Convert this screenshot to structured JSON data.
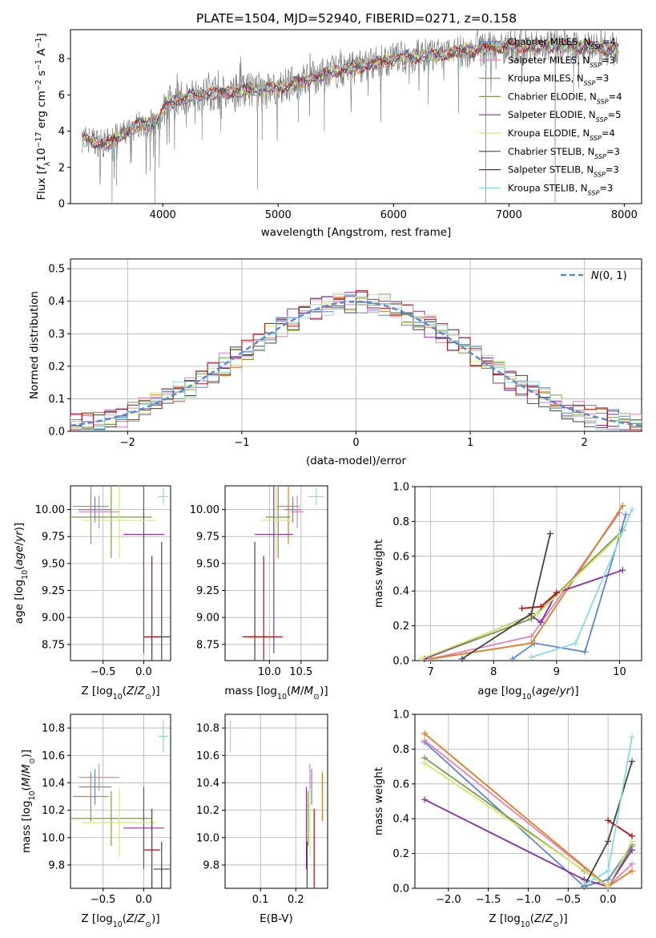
{
  "title": "PLATE=1504, MJD=52940, FIBERID=0271, z=0.158",
  "colors": {
    "data": "#808080",
    "chabrier_miles": "#5b86d6",
    "salpeter_miles": "#e97fb6",
    "kroupa_miles": "#e07b1e",
    "chabrier_elodie": "#7a9b54",
    "salpeter_elodie": "#8a2ea8",
    "kroupa_elodie": "#d6e86a",
    "chabrier_stelib": "#444444",
    "salpeter_stelib": "#b50f0f",
    "kroupa_stelib": "#86dbe3",
    "normal_curve": "#5b8ad6"
  },
  "chart_data": [
    {
      "id": "spectrum",
      "type": "line",
      "title": "PLATE=1504, MJD=52940, FIBERID=0271, z=0.158",
      "xlabel": "wavelength [Angstrom, rest frame]",
      "ylabel_parts": [
        "Flux [",
        "f",
        "λ",
        "10",
        "−17",
        " erg cm",
        "−2",
        " s",
        "−1",
        " A",
        "−1",
        "]"
      ],
      "xlim": [
        3200,
        8150
      ],
      "ylim": [
        0,
        9.6
      ],
      "xticks": [
        4000,
        5000,
        6000,
        7000,
        8000
      ],
      "yticks": [
        0,
        2,
        4,
        6,
        8
      ],
      "continuum": [
        [
          3300,
          3.6
        ],
        [
          3500,
          3.3
        ],
        [
          3650,
          3.8
        ],
        [
          3800,
          4.4
        ],
        [
          3950,
          4.5
        ],
        [
          4050,
          5.6
        ],
        [
          4300,
          6.0
        ],
        [
          4600,
          6.2
        ],
        [
          5000,
          6.4
        ],
        [
          5500,
          7.3
        ],
        [
          6000,
          8.0
        ],
        [
          6500,
          8.3
        ],
        [
          7000,
          8.7
        ],
        [
          7500,
          8.7
        ],
        [
          8000,
          8.5
        ]
      ],
      "absorption_lines": [
        [
          3560,
          0.0
        ],
        [
          3600,
          1.0
        ],
        [
          3720,
          2.2
        ],
        [
          3890,
          1.8
        ],
        [
          3934,
          0.0
        ],
        [
          3970,
          2.0
        ],
        [
          4102,
          3.0
        ],
        [
          4340,
          3.5
        ],
        [
          4500,
          4.0
        ],
        [
          4820,
          0.8
        ],
        [
          4861,
          3.5
        ],
        [
          5175,
          4.5
        ],
        [
          5400,
          4.0
        ],
        [
          5890,
          4.5
        ],
        [
          6300,
          5.5
        ],
        [
          6563,
          5.0
        ],
        [
          6800,
          0.0
        ],
        [
          7400,
          0.0
        ],
        [
          7560,
          6.2
        ]
      ],
      "legend": [
        {
          "name": "Chabrier MILES",
          "n": "4",
          "color": "#5b86d6"
        },
        {
          "name": "Salpeter MILES",
          "n": "3",
          "color": "#e97fb6"
        },
        {
          "name": "Kroupa MILES",
          "n": "3",
          "color": "#e07b1e"
        },
        {
          "name": "Chabrier ELODIE",
          "n": "4",
          "color": "#7a9b54"
        },
        {
          "name": "Salpeter ELODIE",
          "n": "5",
          "color": "#8a2ea8"
        },
        {
          "name": "Kroupa ELODIE",
          "n": "4",
          "color": "#d6e86a"
        },
        {
          "name": "Chabrier STELIB",
          "n": "3",
          "color": "#444444"
        },
        {
          "name": "Salpeter STELIB",
          "n": "3",
          "color": "#b50f0f"
        },
        {
          "name": "Kroupa STELIB",
          "n": "3",
          "color": "#86dbe3"
        }
      ],
      "legend_sub": "SSP",
      "legend_placement": "right"
    },
    {
      "id": "residuals",
      "type": "histogram",
      "xlabel": "(data-model)/error",
      "ylabel": "Normed distribution",
      "xlim": [
        -2.5,
        2.5
      ],
      "ylim": [
        0,
        0.53
      ],
      "xticks": [
        -2,
        -1,
        0,
        1,
        2
      ],
      "yticks": [
        0.0,
        0.1,
        0.2,
        0.3,
        0.4,
        0.5
      ],
      "bin_width": 0.1,
      "grid": true,
      "series_colors": [
        "#5b86d6",
        "#e97fb6",
        "#e07b1e",
        "#7a9b54",
        "#8a2ea8",
        "#d6e86a",
        "#444444",
        "#b50f0f",
        "#86dbe3"
      ],
      "legend": {
        "label_script": "N",
        "label_rest": "(0, 1)",
        "placement": "top-right"
      }
    },
    {
      "id": "age_vs_z",
      "type": "scatter",
      "xlabel": "Z [log10(Z/Z☉)]",
      "ylabel": "age  [log10(age/yr)]",
      "xlim": [
        -0.9,
        0.33
      ],
      "ylim": [
        8.6,
        10.22
      ],
      "xticks": [
        -0.5,
        0.0
      ],
      "xticklabels": [
        "−0.5",
        "0.0"
      ],
      "yticks": [
        8.75,
        9.0,
        9.25,
        9.5,
        9.75,
        10.0
      ],
      "points": [
        {
          "x": -0.6,
          "xerr": 0.2,
          "y": 10.0,
          "yerr": 0.12,
          "color": "#5b86d6"
        },
        {
          "x": -0.55,
          "xerr": 0.25,
          "y": 9.98,
          "yerr": 0.15,
          "color": "#e97fb6"
        },
        {
          "x": -0.65,
          "xerr": 0.22,
          "y": 10.03,
          "yerr": 0.35,
          "color": "#e07b1e"
        },
        {
          "x": -0.4,
          "xerr": 0.5,
          "y": 9.93,
          "yerr": 0.38,
          "color": "#7a9b54"
        },
        {
          "x": 0.0,
          "xerr": 0.25,
          "y": 9.77,
          "yerr": 1.1,
          "color": "#8a2ea8"
        },
        {
          "x": -0.3,
          "xerr": 0.45,
          "y": 9.9,
          "yerr": 0.35,
          "color": "#d6e86a"
        },
        {
          "x": 0.22,
          "xerr": 0.1,
          "y": 8.82,
          "yerr": 0.88,
          "color": "#444444"
        },
        {
          "x": 0.1,
          "xerr": 0.1,
          "y": 8.82,
          "yerr": 0.75,
          "color": "#b50f0f"
        },
        {
          "x": 0.24,
          "xerr": 0.06,
          "y": 10.12,
          "yerr": 0.08,
          "color": "#86dbe3"
        }
      ]
    },
    {
      "id": "age_vs_mass",
      "type": "scatter",
      "xlabel": "mass [log10(M/M☉)]",
      "ylabel": "",
      "xlim": [
        9.3,
        10.92
      ],
      "ylim": [
        8.6,
        10.22
      ],
      "xticks": [
        10.0,
        10.5
      ],
      "xticklabels": [
        "10.0",
        "10.5"
      ],
      "yticks": [
        8.75,
        9.0,
        9.25,
        9.5,
        9.75,
        10.0
      ],
      "points": [
        {
          "x": 10.37,
          "xerr": 0.13,
          "y": 10.0,
          "yerr": 0.12,
          "color": "#5b86d6"
        },
        {
          "x": 10.44,
          "xerr": 0.1,
          "y": 9.98,
          "yerr": 0.15,
          "color": "#e97fb6"
        },
        {
          "x": 10.3,
          "xerr": 0.18,
          "y": 10.03,
          "yerr": 0.35,
          "color": "#e07b1e"
        },
        {
          "x": 10.14,
          "xerr": 0.2,
          "y": 9.93,
          "yerr": 0.38,
          "color": "#7a9b54"
        },
        {
          "x": 10.07,
          "xerr": 0.3,
          "y": 9.77,
          "yerr": 1.1,
          "color": "#8a2ea8"
        },
        {
          "x": 10.11,
          "xerr": 0.25,
          "y": 9.9,
          "yerr": 0.35,
          "color": "#d6e86a"
        },
        {
          "x": 9.77,
          "xerr": 0.2,
          "y": 8.82,
          "yerr": 0.88,
          "color": "#444444"
        },
        {
          "x": 9.91,
          "xerr": 0.3,
          "y": 8.82,
          "yerr": 0.75,
          "color": "#b50f0f"
        },
        {
          "x": 10.74,
          "xerr": 0.12,
          "y": 10.12,
          "yerr": 0.08,
          "color": "#86dbe3"
        }
      ]
    },
    {
      "id": "mass_weight_vs_age",
      "type": "line",
      "xlabel": "age  [log10(age/yr)]",
      "ylabel": "mass weight",
      "xlim": [
        6.75,
        10.35
      ],
      "ylim": [
        0,
        1.0
      ],
      "xticks": [
        7,
        8,
        9,
        10
      ],
      "yticks": [
        0.0,
        0.2,
        0.4,
        0.6,
        0.8,
        1.0
      ],
      "series": [
        {
          "color": "#5b86d6",
          "points": [
            [
              8.3,
              0.01
            ],
            [
              8.65,
              0.1
            ],
            [
              9.45,
              0.05
            ],
            [
              10.1,
              0.84
            ]
          ]
        },
        {
          "color": "#e97fb6",
          "points": [
            [
              7.0,
              0.01
            ],
            [
              8.6,
              0.14
            ],
            [
              10.0,
              0.85
            ]
          ]
        },
        {
          "color": "#e07b1e",
          "points": [
            [
              7.0,
              0.01
            ],
            [
              8.6,
              0.1
            ],
            [
              10.05,
              0.89
            ]
          ]
        },
        {
          "color": "#7a9b54",
          "points": [
            [
              6.9,
              0.01
            ],
            [
              8.6,
              0.24
            ],
            [
              10.05,
              0.75
            ]
          ]
        },
        {
          "color": "#8a2ea8",
          "points": [
            [
              6.9,
              0.01
            ],
            [
              8.6,
              0.26
            ],
            [
              8.75,
              0.22
            ],
            [
              9.0,
              0.39
            ],
            [
              10.05,
              0.52
            ]
          ]
        },
        {
          "color": "#d6e86a",
          "points": [
            [
              6.85,
              0.01
            ],
            [
              8.7,
              0.27
            ],
            [
              10.0,
              0.72
            ]
          ]
        },
        {
          "color": "#444444",
          "points": [
            [
              7.5,
              0.01
            ],
            [
              8.6,
              0.27
            ],
            [
              8.9,
              0.73
            ]
          ]
        },
        {
          "color": "#b50f0f",
          "points": [
            [
              8.45,
              0.3
            ],
            [
              8.75,
              0.31
            ],
            [
              9.0,
              0.39
            ]
          ]
        },
        {
          "color": "#86dbe3",
          "points": [
            [
              8.6,
              0.02
            ],
            [
              9.3,
              0.1
            ],
            [
              10.2,
              0.87
            ]
          ]
        }
      ]
    },
    {
      "id": "mass_vs_z",
      "type": "scatter",
      "xlabel": "Z [log10(Z/Z☉)]",
      "ylabel": "mass [log10(M/M☉)]",
      "xlim": [
        -0.9,
        0.33
      ],
      "ylim": [
        9.63,
        10.9
      ],
      "xticks": [
        -0.5,
        0.0
      ],
      "xticklabels": [
        "−0.5",
        "0.0"
      ],
      "yticks": [
        9.8,
        10.0,
        10.2,
        10.4,
        10.6,
        10.8
      ],
      "points": [
        {
          "x": -0.6,
          "xerr": 0.2,
          "y": 10.37,
          "yerr": 0.13,
          "color": "#5b86d6"
        },
        {
          "x": -0.55,
          "xerr": 0.25,
          "y": 10.44,
          "yerr": 0.1,
          "color": "#e97fb6"
        },
        {
          "x": -0.65,
          "xerr": 0.22,
          "y": 10.3,
          "yerr": 0.18,
          "color": "#e07b1e"
        },
        {
          "x": -0.4,
          "xerr": 0.5,
          "y": 10.14,
          "yerr": 0.2,
          "color": "#7a9b54"
        },
        {
          "x": 0.0,
          "xerr": 0.25,
          "y": 10.07,
          "yerr": 0.3,
          "color": "#8a2ea8"
        },
        {
          "x": -0.3,
          "xerr": 0.45,
          "y": 10.11,
          "yerr": 0.25,
          "color": "#d6e86a"
        },
        {
          "x": 0.22,
          "xerr": 0.1,
          "y": 9.77,
          "yerr": 0.2,
          "color": "#444444"
        },
        {
          "x": 0.1,
          "xerr": 0.1,
          "y": 9.91,
          "yerr": 0.3,
          "color": "#b50f0f"
        },
        {
          "x": 0.24,
          "xerr": 0.06,
          "y": 10.74,
          "yerr": 0.12,
          "color": "#86dbe3"
        }
      ]
    },
    {
      "id": "mass_vs_ebv",
      "type": "scatter",
      "xlabel": "E(B-V)",
      "ylabel": "",
      "xlim": [
        0.0,
        0.29
      ],
      "ylim": [
        9.63,
        10.9
      ],
      "xticks": [
        0.1,
        0.2
      ],
      "xticklabels": [
        "0.1",
        "0.2"
      ],
      "yticks": [
        9.8,
        10.0,
        10.2,
        10.4,
        10.6,
        10.8
      ],
      "points": [
        {
          "x": 0.245,
          "xerr": 0.0,
          "y": 10.37,
          "yerr": 0.13,
          "color": "#5b86d6"
        },
        {
          "x": 0.24,
          "xerr": 0.0,
          "y": 10.44,
          "yerr": 0.1,
          "color": "#e97fb6"
        },
        {
          "x": 0.275,
          "xerr": 0.0,
          "y": 10.3,
          "yerr": 0.18,
          "color": "#e07b1e"
        },
        {
          "x": 0.235,
          "xerr": 0.0,
          "y": 10.14,
          "yerr": 0.2,
          "color": "#7a9b54"
        },
        {
          "x": 0.23,
          "xerr": 0.0,
          "y": 10.07,
          "yerr": 0.3,
          "color": "#8a2ea8"
        },
        {
          "x": 0.24,
          "xerr": 0.0,
          "y": 10.11,
          "yerr": 0.25,
          "color": "#d6e86a"
        },
        {
          "x": 0.232,
          "xerr": 0.0,
          "y": 9.77,
          "yerr": 0.2,
          "color": "#444444"
        },
        {
          "x": 0.252,
          "xerr": 0.0,
          "y": 9.91,
          "yerr": 0.3,
          "color": "#b50f0f"
        },
        {
          "x": 0.015,
          "xerr": 0.0,
          "y": 10.74,
          "yerr": 0.12,
          "color": "#86dbe3"
        }
      ]
    },
    {
      "id": "mass_weight_vs_z",
      "type": "line",
      "xlabel": "Z [log10(Z/Z☉)]",
      "ylabel": "mass weight",
      "xlim": [
        -2.42,
        0.42
      ],
      "ylim": [
        0,
        1.0
      ],
      "xticks": [
        -2.0,
        -1.5,
        -1.0,
        -0.5,
        0.0
      ],
      "xticklabels": [
        "−2.0",
        "−1.5",
        "−1.0",
        "−0.5",
        "0.0"
      ],
      "yticks": [
        0.0,
        0.2,
        0.4,
        0.6,
        0.8,
        1.0
      ],
      "series": [
        {
          "color": "#5b86d6",
          "points": [
            [
              -2.3,
              0.84
            ],
            [
              -0.3,
              0.01
            ],
            [
              0.0,
              0.05
            ],
            [
              0.3,
              0.25
            ]
          ]
        },
        {
          "color": "#e97fb6",
          "points": [
            [
              -2.3,
              0.85
            ],
            [
              0.0,
              0.01
            ],
            [
              0.3,
              0.14
            ]
          ]
        },
        {
          "color": "#e07b1e",
          "points": [
            [
              -2.3,
              0.89
            ],
            [
              0.0,
              0.01
            ],
            [
              0.3,
              0.1
            ]
          ]
        },
        {
          "color": "#7a9b54",
          "points": [
            [
              -2.3,
              0.75
            ],
            [
              -0.3,
              0.1
            ],
            [
              0.0,
              0.01
            ],
            [
              0.3,
              0.24
            ]
          ]
        },
        {
          "color": "#8a2ea8",
          "points": [
            [
              -2.3,
              0.51
            ],
            [
              -0.3,
              0.05
            ],
            [
              0.0,
              0.01
            ],
            [
              0.3,
              0.22
            ]
          ]
        },
        {
          "color": "#d6e86a",
          "points": [
            [
              -2.3,
              0.72
            ],
            [
              0.0,
              0.01
            ],
            [
              0.3,
              0.27
            ]
          ]
        },
        {
          "color": "#444444",
          "points": [
            [
              -0.3,
              0.01
            ],
            [
              0.0,
              0.27
            ],
            [
              0.3,
              0.73
            ]
          ]
        },
        {
          "color": "#b50f0f",
          "points": [
            [
              0.0,
              0.39
            ],
            [
              0.3,
              0.3
            ]
          ]
        },
        {
          "color": "#86dbe3",
          "points": [
            [
              -0.3,
              0.02
            ],
            [
              0.0,
              0.1
            ],
            [
              0.3,
              0.87
            ]
          ]
        }
      ]
    }
  ]
}
